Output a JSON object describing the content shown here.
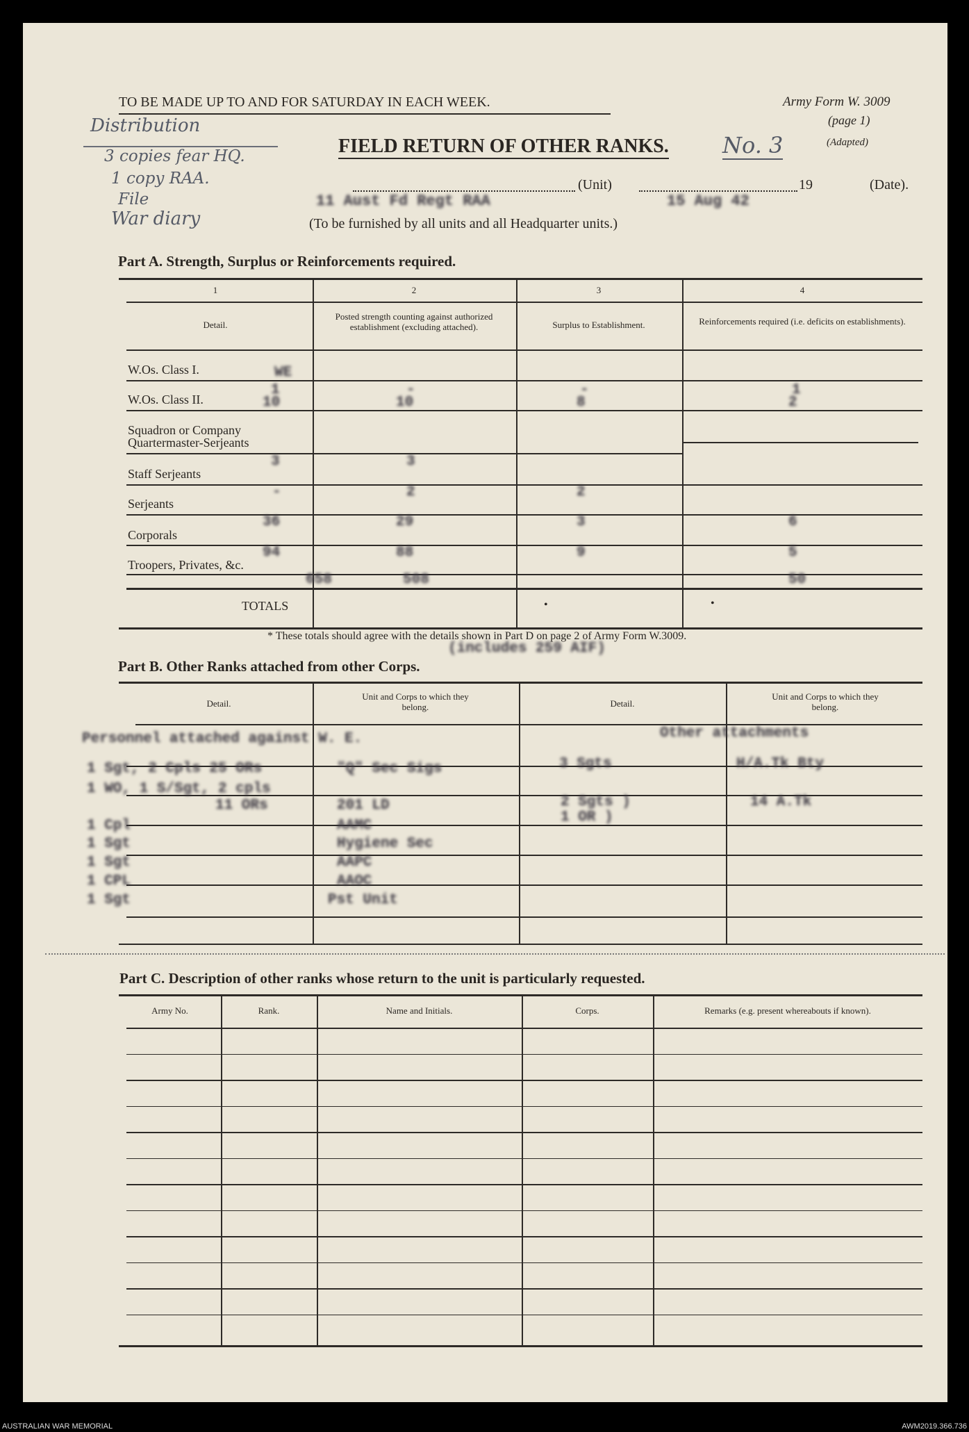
{
  "header": {
    "instruction": "TO BE MADE UP TO AND FOR SATURDAY IN EACH WEEK.",
    "form_no": "Army Form W. 3009",
    "page": "(page 1)",
    "adapted": "(Adapted)",
    "title": "FIELD RETURN OF OTHER RANKS.",
    "number_handwritten": "No. 3",
    "unit_label": "(Unit)",
    "year_prefix": "19",
    "date_label": "(Date).",
    "unit_value": "11 Aust Fd Regt RAA",
    "date_value": "15 Aug 42",
    "subtitle": "(To be furnished by all units and all Headquarter units.)"
  },
  "distribution_note": [
    "Distribution",
    "3 copies fear HQ.",
    "1 copy RAA.",
    "File",
    "War diary"
  ],
  "part_a": {
    "title": "Part A.  Strength, Surplus or Reinforcements required.",
    "col_numbers": [
      "1",
      "2",
      "3",
      "4"
    ],
    "col_headers": [
      "Detail.",
      "Posted strength counting against authorized establishment (excluding attached).",
      "Surplus to Establishment.",
      "Reinforcements required (i.e. deficits on establishments)."
    ],
    "rows": [
      {
        "label": "W.Os. Class I.",
        "typed": [
          "WE",
          "",
          "",
          ""
        ]
      },
      {
        "label": "W.Os. Class II.",
        "typed": [
          "1",
          "-",
          "-",
          "1"
        ]
      },
      {
        "label": "",
        "typed": [
          "10",
          "10",
          "8",
          "2"
        ]
      },
      {
        "label": "Squadron or Company Quartermaster-Serjeants",
        "typed": [
          "",
          "",
          "",
          ""
        ]
      },
      {
        "label": "Staff Serjeants",
        "typed": [
          "3",
          "3",
          "",
          ""
        ]
      },
      {
        "label": "Serjeants",
        "typed": [
          "-",
          "2",
          "2",
          ""
        ]
      },
      {
        "label": "Corporals",
        "typed": [
          "36",
          "29",
          "3",
          "6"
        ]
      },
      {
        "label": "Troopers, Privates, &c.",
        "typed": [
          "94",
          "88",
          "9",
          "5"
        ]
      },
      {
        "label": "",
        "typed": [
          "658",
          "508",
          "",
          "50"
        ]
      }
    ],
    "totals_label": "TOTALS",
    "footnote": "* These totals should agree with the details shown in Part D on page 2 of Army Form W.3009.",
    "typed_note": "(includes 259 AIF)"
  },
  "part_b": {
    "title": "Part B.  Other Ranks attached from other Corps.",
    "col_headers": [
      "Detail.",
      "Unit and Corps to which they belong.",
      "Detail.",
      "Unit and Corps to which they belong."
    ],
    "left_heading": "Personnel attached against W. E.",
    "left_rows": [
      [
        "1 Sgt, 2 Cpls 25 ORs",
        "\"Q\" Sec Sigs"
      ],
      [
        "1 WO, 1 S/Sgt, 2 cpls",
        ""
      ],
      [
        "11 ORs",
        "201 LD"
      ],
      [
        "1 Cpl",
        "AAMC"
      ],
      [
        "1 Sgt",
        "Hygiene Sec"
      ],
      [
        "1 Sgt",
        "AAPC"
      ],
      [
        "1 CPL",
        "AAOC"
      ],
      [
        "1 Sgt",
        "Pst Unit"
      ]
    ],
    "right_heading": "Other attachments",
    "right_rows": [
      [
        "3 Sgts",
        "H/A.Tk Bty"
      ],
      [
        "2 Sgts )",
        "14 A.Tk"
      ],
      [
        "1 OR )",
        ""
      ]
    ]
  },
  "part_c": {
    "title": "Part C.  Description of other ranks whose return to the unit is particularly requested.",
    "col_headers": [
      "Army No.",
      "Rank.",
      "Name and Initials.",
      "Corps.",
      "Remarks (e.g. present whereabouts if known)."
    ]
  },
  "footer": {
    "left": "AUSTRALIAN WAR MEMORIAL",
    "right": "AWM2019.366.736"
  }
}
